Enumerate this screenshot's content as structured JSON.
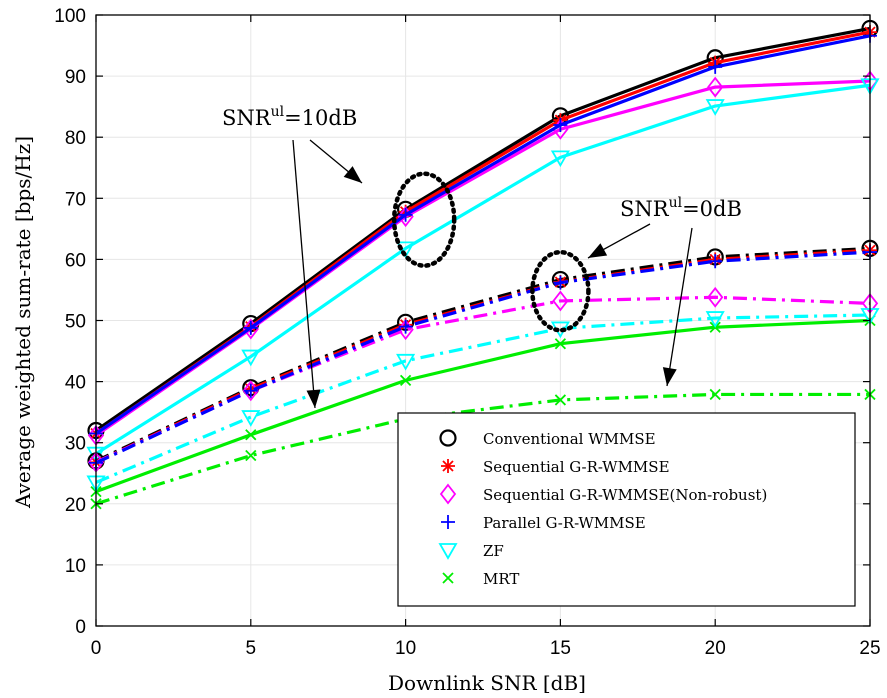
{
  "chart_data": {
    "type": "line",
    "xlabel": "Downlink SNR [dB]",
    "ylabel": "Average weighted sum-rate [bps/Hz]",
    "xlim": [
      0,
      25
    ],
    "ylim": [
      0,
      100
    ],
    "xticks": [
      0,
      5,
      10,
      15,
      20,
      25
    ],
    "yticks": [
      0,
      10,
      20,
      30,
      40,
      50,
      60,
      70,
      80,
      90,
      100
    ],
    "x": [
      0,
      5,
      10,
      15,
      20,
      25
    ],
    "grid": true,
    "legend_position": "bottom-right",
    "annotations": [
      {
        "base": "SNR",
        "sup": "ul",
        "rest": "=10dB"
      },
      {
        "base": "SNR",
        "sup": "ul",
        "rest": "=0dB"
      }
    ],
    "series": [
      {
        "name": "Conventional WMMSE",
        "color": "#000000",
        "marker": "circle",
        "linestyle": "solid",
        "values": [
          32,
          49.5,
          68.2,
          83.5,
          93,
          97.8
        ]
      },
      {
        "name": "Sequential G-R-WMMSE",
        "color": "#ff0000",
        "marker": "asterisk",
        "linestyle": "solid",
        "values": [
          31.5,
          49,
          67.8,
          82.8,
          92.2,
          97.2
        ]
      },
      {
        "name": "Sequential G-R-WMMSE(Non-robust)",
        "color": "#ff00ff",
        "marker": "diamond",
        "linestyle": "solid",
        "values": [
          31.2,
          48.6,
          67,
          81.3,
          88.2,
          89.2
        ]
      },
      {
        "name": "Parallel G-R-WMMSE",
        "color": "#0000ff",
        "marker": "plus",
        "linestyle": "solid",
        "values": [
          31.5,
          48.8,
          67.3,
          82,
          91.5,
          96.6
        ]
      },
      {
        "name": "ZF",
        "color": "#00ffff",
        "marker": "triangle-down",
        "linestyle": "solid",
        "values": [
          28.2,
          44.1,
          61.8,
          76.7,
          85.1,
          88.5
        ]
      },
      {
        "name": "MRT",
        "color": "#00ee00",
        "marker": "x",
        "linestyle": "solid",
        "values": [
          22,
          31.3,
          40.2,
          46.2,
          48.9,
          50
        ]
      },
      {
        "name": "Conventional WMMSE",
        "color": "#000000",
        "marker": "circle",
        "linestyle": "dashdot",
        "values": [
          27,
          39,
          49.7,
          56.7,
          60.4,
          61.8
        ]
      },
      {
        "name": "Sequential G-R-WMMSE",
        "color": "#ff0000",
        "marker": "asterisk",
        "linestyle": "dashdot",
        "values": [
          26.8,
          38.8,
          49.3,
          56.3,
          60,
          61.5
        ]
      },
      {
        "name": "Sequential G-R-WMMSE(Non-robust)",
        "color": "#ff00ff",
        "marker": "diamond",
        "linestyle": "dashdot",
        "values": [
          26.8,
          38.5,
          48.5,
          53.2,
          53.8,
          52.8
        ]
      },
      {
        "name": "Parallel G-R-WMMSE",
        "color": "#0000ff",
        "marker": "plus",
        "linestyle": "dashdot",
        "values": [
          26.7,
          38.5,
          49,
          56.2,
          59.7,
          61.2
        ]
      },
      {
        "name": "ZF",
        "color": "#00ffff",
        "marker": "triangle-down",
        "linestyle": "dashdot",
        "values": [
          23.5,
          34.2,
          43.4,
          48.7,
          50.4,
          50.9
        ]
      },
      {
        "name": "MRT",
        "color": "#00ee00",
        "marker": "x",
        "linestyle": "dashdot",
        "values": [
          20,
          27.9,
          33.9,
          37,
          37.9,
          37.9
        ]
      }
    ],
    "legend": [
      {
        "label": "Conventional WMMSE",
        "color": "#000000",
        "marker": "circle"
      },
      {
        "label": "Sequential G-R-WMMSE",
        "color": "#ff0000",
        "marker": "asterisk"
      },
      {
        "label": "Sequential G-R-WMMSE(Non-robust)",
        "color": "#ff00ff",
        "marker": "diamond"
      },
      {
        "label": "Parallel G-R-WMMSE",
        "color": "#0000ff",
        "marker": "plus"
      },
      {
        "label": "ZF",
        "color": "#00ffff",
        "marker": "triangle-down"
      },
      {
        "label": "MRT",
        "color": "#00ee00",
        "marker": "x"
      }
    ]
  }
}
